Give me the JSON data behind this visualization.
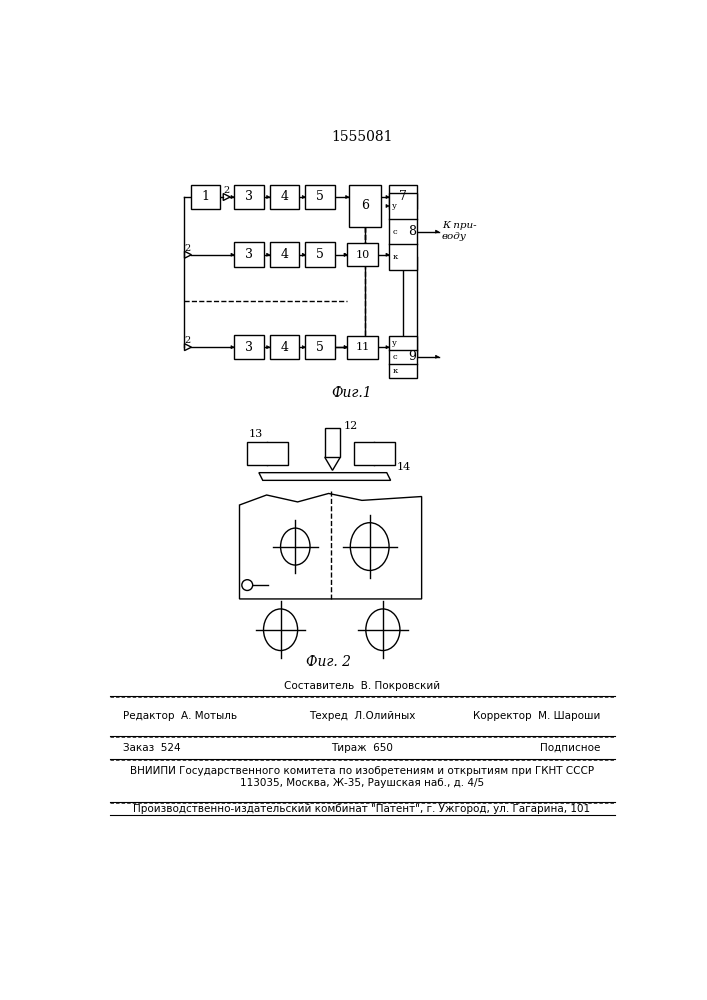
{
  "title": "1555081",
  "fig1_label": "Фиг.1",
  "fig2_label": "Фиг. 2",
  "bg_color": "#ffffff",
  "line_color": "#000000"
}
